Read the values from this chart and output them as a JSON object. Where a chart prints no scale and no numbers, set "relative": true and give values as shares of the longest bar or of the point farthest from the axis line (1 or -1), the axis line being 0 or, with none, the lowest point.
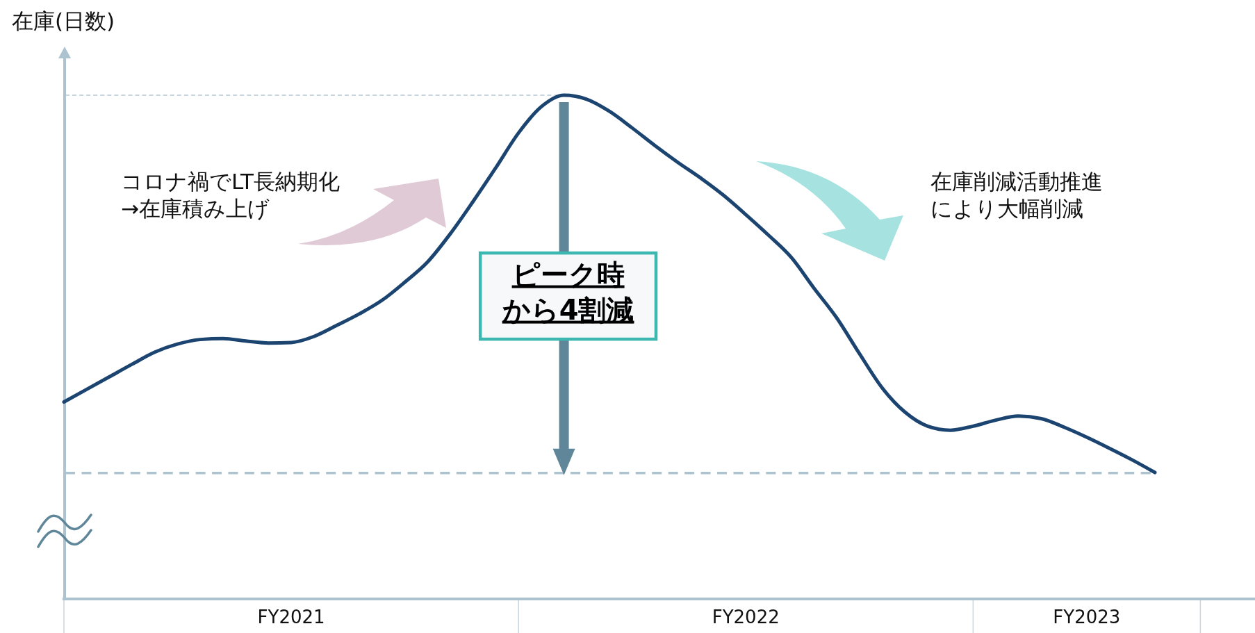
{
  "chart_data": {
    "type": "line",
    "ylabel": "在庫(日数)",
    "relative": true,
    "categories": [
      null,
      null,
      null,
      null,
      null,
      null,
      null,
      null,
      null,
      null,
      "FY2021",
      null,
      null,
      null,
      null,
      null,
      null,
      null,
      null,
      null,
      null,
      null,
      null,
      null,
      null,
      null,
      null,
      null,
      null,
      null,
      "FY2022",
      null,
      null,
      null,
      null,
      null,
      null,
      null,
      null,
      null,
      null,
      null,
      null,
      null,
      null,
      "FY2023",
      null,
      null,
      null
    ],
    "series": [
      {
        "color": "#1b4470",
        "values": [
          0.391,
          0.416,
          0.441,
          0.466,
          0.49,
          0.506,
          0.515,
          0.517,
          0.512,
          0.508,
          0.509,
          0.521,
          0.543,
          0.566,
          0.593,
          0.629,
          0.669,
          0.725,
          0.789,
          0.856,
          0.925,
          0.977,
          1,
          0.992,
          0.968,
          0.935,
          0.9,
          0.867,
          0.836,
          0.802,
          0.763,
          0.722,
          0.678,
          0.617,
          0.558,
          0.487,
          0.419,
          0.371,
          0.343,
          0.335,
          0.343,
          0.355,
          0.363,
          0.358,
          0.341,
          0.321,
          0.299,
          0.276,
          0.251
        ]
      }
    ],
    "ref_lines": [
      {
        "axis": "y",
        "value": 1,
        "color": "#b4c8d4",
        "line_style": "dashed"
      },
      {
        "axis": "y",
        "value": 0.25,
        "color": "#adc3cf",
        "line_style": "dashed"
      }
    ],
    "annotations": [
      "コロナ禍でLT長納期化→在庫積み上げ",
      "ピーク時から4割減",
      "在庫削減活動推進により大幅削減"
    ]
  }
}
